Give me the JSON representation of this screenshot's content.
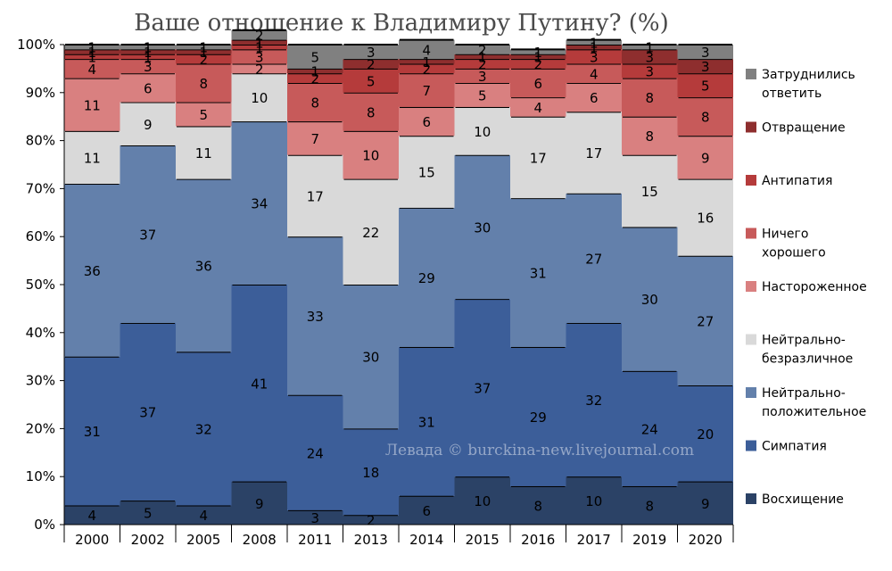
{
  "chart_data": {
    "type": "bar",
    "stacked": true,
    "title": "Ваше отношение к Владимиру Путину? (%)",
    "watermark": "Левада © burckina-new.livejournal.com",
    "categories": [
      "2000",
      "2002",
      "2005",
      "2008",
      "2011",
      "2013",
      "2014",
      "2015",
      "2016",
      "2017",
      "2019",
      "2020"
    ],
    "y_ticks": [
      "0%",
      "10%",
      "20%",
      "30%",
      "40%",
      "50%",
      "60%",
      "70%",
      "80%",
      "90%",
      "100%"
    ],
    "ylim": [
      0,
      100
    ],
    "grid": "horizontal-dashed",
    "legend_position": "right",
    "series": [
      {
        "name": "Восхищение",
        "color": "#2b4266",
        "values": [
          4,
          5,
          4,
          9,
          3,
          2,
          6,
          10,
          8,
          10,
          8,
          9
        ]
      },
      {
        "name": "Симпатия",
        "color": "#3c5e99",
        "values": [
          31,
          37,
          32,
          41,
          24,
          18,
          31,
          37,
          29,
          32,
          24,
          20
        ]
      },
      {
        "name": "Нейтрально-положительное",
        "color": "#6380ab",
        "values": [
          36,
          37,
          36,
          34,
          33,
          30,
          29,
          30,
          31,
          27,
          30,
          27
        ]
      },
      {
        "name": "Нейтрально-безразличное",
        "color": "#d9d9d9",
        "values": [
          11,
          9,
          11,
          10,
          17,
          22,
          15,
          10,
          17,
          17,
          15,
          16
        ]
      },
      {
        "name": "Настороженное",
        "color": "#d98080",
        "values": [
          11,
          6,
          5,
          2,
          7,
          10,
          6,
          5,
          4,
          6,
          8,
          9
        ]
      },
      {
        "name": "Ничего хорошего",
        "color": "#c75a5a",
        "values": [
          4,
          3,
          8,
          3,
          8,
          8,
          7,
          3,
          6,
          4,
          8,
          8
        ]
      },
      {
        "name": "Антипатия",
        "color": "#b53b3b",
        "values": [
          1,
          1,
          2,
          1,
          2,
          5,
          2,
          2,
          2,
          3,
          3,
          5
        ]
      },
      {
        "name": "Отвращение",
        "color": "#8e2e2e",
        "values": [
          1,
          1,
          1,
          1,
          1,
          2,
          1,
          1,
          1,
          1,
          3,
          3
        ]
      },
      {
        "name": "Затруднились ответить",
        "color": "#808080",
        "values": [
          1,
          1,
          1,
          2,
          5,
          3,
          4,
          2,
          1,
          1,
          1,
          3
        ]
      }
    ],
    "label_threshold": 2
  }
}
